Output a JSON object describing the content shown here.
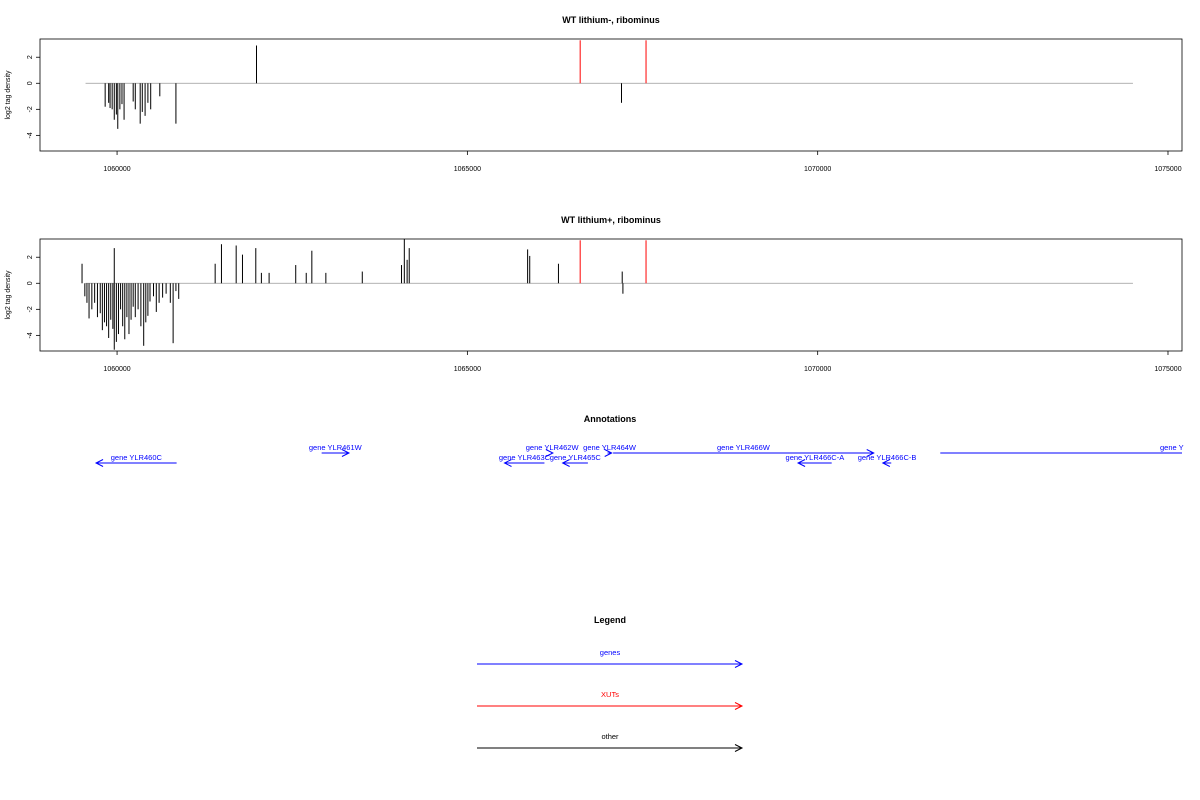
{
  "colors": {
    "genes": "#0000ff",
    "xuts": "#ff0000",
    "other": "#000000",
    "baseline": "#999999"
  },
  "chart_data": [
    {
      "type": "bar",
      "title": "WT lithium-, ribominus",
      "ylabel": "log2 tag density",
      "xlim": [
        1058900,
        1075200
      ],
      "ylim": [
        -5.2,
        3.4
      ],
      "xticks": [
        1060000,
        1065000,
        1070000,
        1075000
      ],
      "xtick_labels": [
        "1060000",
        "1065000",
        "1070000",
        "1075000"
      ],
      "yticks": [
        2,
        0,
        -2,
        -4
      ],
      "ytick_labels": [
        "2",
        "0",
        "-2",
        "-4"
      ],
      "baseline_range": [
        1059550,
        1074500
      ],
      "series": [
        {
          "color": "other",
          "x": [
            1059830,
            1059880,
            1059900,
            1059930,
            1059960,
            1059990,
            1060010,
            1060040,
            1060070,
            1060100,
            1060230,
            1060260,
            1060330,
            1060360,
            1060400,
            1060440,
            1060480,
            1060610,
            1060840,
            1061990,
            1067200
          ],
          "values": [
            -1.8,
            -1.5,
            -1.9,
            -2.0,
            -2.8,
            -2.4,
            -3.5,
            -2.0,
            -1.6,
            -2.8,
            -1.4,
            -2.0,
            -3.1,
            -2.2,
            -2.5,
            -1.5,
            -2.0,
            -1.0,
            -3.1,
            2.9,
            -1.5
          ]
        },
        {
          "color": "xuts",
          "x": [
            1066610,
            1067550
          ],
          "values": [
            3.3,
            3.3
          ]
        }
      ]
    },
    {
      "type": "bar",
      "title": "WT lithium+, ribominus",
      "ylabel": "log2 tag density",
      "xlim": [
        1058900,
        1075200
      ],
      "ylim": [
        -5.2,
        3.4
      ],
      "xticks": [
        1060000,
        1065000,
        1070000,
        1075000
      ],
      "xtick_labels": [
        "1060000",
        "1065000",
        "1070000",
        "1075000"
      ],
      "yticks": [
        2,
        0,
        -2,
        -4
      ],
      "ytick_labels": [
        "2",
        "0",
        "-2",
        "-4"
      ],
      "baseline_range": [
        1059550,
        1074500
      ],
      "series": [
        {
          "color": "other",
          "x": [
            1059500,
            1059540,
            1059570,
            1059600,
            1059640,
            1059680,
            1059720,
            1059760,
            1059790,
            1059820,
            1059850,
            1059880,
            1059910,
            1059940,
            1059960,
            1059990,
            1060020,
            1060050,
            1060080,
            1060110,
            1060140,
            1060170,
            1060200,
            1060230,
            1060260,
            1060300,
            1060340,
            1060380,
            1060410,
            1060440,
            1060470,
            1060520,
            1060560,
            1060600,
            1060650,
            1060700,
            1060760,
            1060800,
            1060840,
            1060880,
            1059960,
            1061400,
            1061490,
            1061700,
            1061790,
            1061980,
            1062060,
            1062170,
            1062550,
            1062700,
            1062780,
            1062980,
            1063500,
            1064060,
            1064100,
            1064140,
            1064170,
            1065860,
            1065890,
            1066300,
            1067210,
            1067220
          ],
          "values": [
            1.5,
            -1.0,
            -1.5,
            -2.7,
            -2.0,
            -1.5,
            -2.6,
            -2.3,
            -3.6,
            -3.0,
            -3.3,
            -4.2,
            -2.8,
            -3.5,
            -5.1,
            -4.5,
            -3.9,
            -2.0,
            -3.3,
            -4.3,
            -2.6,
            -3.9,
            -2.8,
            -1.8,
            -2.6,
            -2.0,
            -3.3,
            -4.8,
            -3.0,
            -2.5,
            -1.4,
            -1.0,
            -2.2,
            -1.5,
            -1.1,
            -0.8,
            -1.5,
            -4.6,
            -0.6,
            -1.2,
            2.7,
            1.5,
            3.0,
            2.9,
            2.2,
            2.7,
            0.8,
            0.8,
            1.4,
            0.8,
            2.5,
            0.8,
            0.9,
            1.4,
            3.4,
            1.8,
            2.7,
            2.6,
            2.1,
            1.5,
            0.9,
            -0.8
          ]
        },
        {
          "color": "xuts",
          "x": [
            1066610,
            1067550
          ],
          "values": [
            3.3,
            3.3
          ]
        }
      ]
    }
  ],
  "annotations": {
    "title": "Annotations",
    "genes": [
      {
        "label": "gene YLR460C",
        "x1": 1060850,
        "x2": 1059700,
        "dir": "rev",
        "row": 2
      },
      {
        "label": "gene YLR461W",
        "x1": 1062920,
        "x2": 1063310,
        "dir": "fwd",
        "row": 1
      },
      {
        "label": "gene YLR462W",
        "x1": 1066200,
        "x2": 1066220,
        "dir": "fwd",
        "row": 1
      },
      {
        "label": "gene YLR464W",
        "x1": 1067000,
        "x2": 1067060,
        "dir": "fwd",
        "row": 1
      },
      {
        "label": "gene YLR466W",
        "x1": 1067080,
        "x2": 1070800,
        "dir": "fwd",
        "row": 1
      },
      {
        "label": "gene Y",
        "x1": 1071750,
        "x2": 1075200,
        "dir": "none",
        "row": 1
      },
      {
        "label": "gene YLR463C",
        "x1": 1066100,
        "x2": 1065530,
        "dir": "rev",
        "row": 2
      },
      {
        "label": "gene YLR465C",
        "x1": 1066720,
        "x2": 1066360,
        "dir": "rev",
        "row": 2
      },
      {
        "label": "gene YLR466C-A",
        "x1": 1070200,
        "x2": 1069720,
        "dir": "rev",
        "row": 2
      },
      {
        "label": "gene YLR466C-B",
        "x1": 1071050,
        "x2": 1070930,
        "dir": "rev",
        "row": 2
      }
    ]
  },
  "legend": {
    "title": "Legend",
    "items": [
      {
        "label": "genes",
        "color": "genes"
      },
      {
        "label": "XUTs",
        "color": "xuts"
      },
      {
        "label": "other",
        "color": "other"
      }
    ]
  }
}
